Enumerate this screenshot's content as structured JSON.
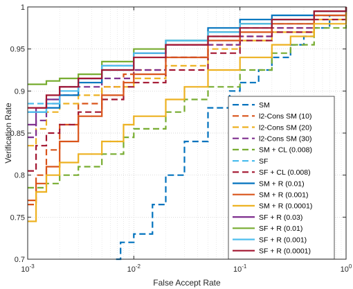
{
  "chart_data": {
    "type": "line",
    "title": "",
    "xlabel": "False Accept Rate",
    "ylabel": "Verification Rate",
    "xscale": "log",
    "xlim": [
      0.001,
      1
    ],
    "ylim": [
      0.7,
      1
    ],
    "grid": true,
    "legend_position": "lower-right",
    "x_ticks": [
      {
        "value": 0.001,
        "base": "10",
        "exp": "-3"
      },
      {
        "value": 0.01,
        "base": "10",
        "exp": "-2"
      },
      {
        "value": 0.1,
        "base": "10",
        "exp": "-1"
      },
      {
        "value": 1,
        "base": "10",
        "exp": "0"
      }
    ],
    "y_ticks": [
      {
        "value": 0.7,
        "label": "0.7"
      },
      {
        "value": 0.75,
        "label": "0.75"
      },
      {
        "value": 0.8,
        "label": "0.8"
      },
      {
        "value": 0.85,
        "label": "0.85"
      },
      {
        "value": 0.9,
        "label": "0.9"
      },
      {
        "value": 0.95,
        "label": "0.95"
      },
      {
        "value": 1,
        "label": "1"
      }
    ],
    "series": [
      {
        "name": "SM",
        "color": "#0072BD",
        "dash": "dashed",
        "points": [
          [
            0.0068,
            0.7
          ],
          [
            0.0075,
            0.72
          ],
          [
            0.01,
            0.73
          ],
          [
            0.015,
            0.765
          ],
          [
            0.02,
            0.8
          ],
          [
            0.03,
            0.84
          ],
          [
            0.05,
            0.88
          ],
          [
            0.08,
            0.9
          ],
          [
            0.1,
            0.91
          ],
          [
            0.15,
            0.925
          ],
          [
            0.2,
            0.94
          ],
          [
            0.3,
            0.955
          ],
          [
            0.4,
            0.965
          ],
          [
            0.5,
            0.975
          ],
          [
            0.7,
            0.99
          ],
          [
            1,
            1.0
          ]
        ]
      },
      {
        "name": "l2-Cons SM (10)",
        "color": "#D95319",
        "dash": "dashed",
        "points": [
          [
            0.001,
            0.765
          ],
          [
            0.0012,
            0.8
          ],
          [
            0.0015,
            0.83
          ],
          [
            0.002,
            0.86
          ],
          [
            0.003,
            0.885
          ],
          [
            0.005,
            0.905
          ],
          [
            0.008,
            0.92
          ],
          [
            0.01,
            0.925
          ],
          [
            0.02,
            0.94
          ],
          [
            0.05,
            0.955
          ],
          [
            0.1,
            0.965
          ],
          [
            0.2,
            0.975
          ],
          [
            0.5,
            0.99
          ],
          [
            1,
            1.0
          ]
        ]
      },
      {
        "name": "l2-Cons SM (20)",
        "color": "#EDB120",
        "dash": "dashed",
        "points": [
          [
            0.001,
            0.835
          ],
          [
            0.0012,
            0.855
          ],
          [
            0.0015,
            0.875
          ],
          [
            0.002,
            0.885
          ],
          [
            0.003,
            0.895
          ],
          [
            0.005,
            0.905
          ],
          [
            0.01,
            0.915
          ],
          [
            0.02,
            0.93
          ],
          [
            0.05,
            0.95
          ],
          [
            0.1,
            0.96
          ],
          [
            0.2,
            0.97
          ],
          [
            0.5,
            0.985
          ],
          [
            1,
            1.0
          ]
        ]
      },
      {
        "name": "l2-Cons SM (30)",
        "color": "#7E2F8E",
        "dash": "dashed",
        "points": [
          [
            0.001,
            0.845
          ],
          [
            0.0012,
            0.865
          ],
          [
            0.0015,
            0.885
          ],
          [
            0.002,
            0.895
          ],
          [
            0.003,
            0.905
          ],
          [
            0.005,
            0.915
          ],
          [
            0.01,
            0.925
          ],
          [
            0.02,
            0.94
          ],
          [
            0.05,
            0.955
          ],
          [
            0.1,
            0.965
          ],
          [
            0.2,
            0.975
          ],
          [
            0.5,
            0.99
          ],
          [
            1,
            1.0
          ]
        ]
      },
      {
        "name": "SM + CL (0.008)",
        "color": "#77AC30",
        "dash": "dashed",
        "points": [
          [
            0.001,
            0.785
          ],
          [
            0.0015,
            0.79
          ],
          [
            0.002,
            0.8
          ],
          [
            0.003,
            0.81
          ],
          [
            0.005,
            0.825
          ],
          [
            0.008,
            0.845
          ],
          [
            0.01,
            0.855
          ],
          [
            0.02,
            0.875
          ],
          [
            0.03,
            0.89
          ],
          [
            0.05,
            0.905
          ],
          [
            0.1,
            0.925
          ],
          [
            0.2,
            0.945
          ],
          [
            0.3,
            0.955
          ],
          [
            0.5,
            0.975
          ],
          [
            1,
            1.0
          ]
        ]
      },
      {
        "name": "SF",
        "color": "#4DBEEE",
        "dash": "dashed",
        "points": [
          [
            0.001,
            0.885
          ],
          [
            0.0015,
            0.89
          ],
          [
            0.002,
            0.905
          ],
          [
            0.003,
            0.915
          ],
          [
            0.005,
            0.93
          ],
          [
            0.01,
            0.945
          ],
          [
            0.02,
            0.955
          ],
          [
            0.05,
            0.965
          ],
          [
            0.1,
            0.975
          ],
          [
            0.2,
            0.98
          ],
          [
            0.5,
            0.99
          ],
          [
            1,
            1.0
          ]
        ]
      },
      {
        "name": "SF + CL (0.008)",
        "color": "#A2142F",
        "dash": "dashed",
        "points": [
          [
            0.001,
            0.805
          ],
          [
            0.0012,
            0.835
          ],
          [
            0.0015,
            0.85
          ],
          [
            0.002,
            0.86
          ],
          [
            0.003,
            0.875
          ],
          [
            0.005,
            0.89
          ],
          [
            0.008,
            0.905
          ],
          [
            0.01,
            0.91
          ],
          [
            0.02,
            0.925
          ],
          [
            0.05,
            0.945
          ],
          [
            0.1,
            0.96
          ],
          [
            0.2,
            0.97
          ],
          [
            0.5,
            0.985
          ],
          [
            1,
            1.0
          ]
        ]
      },
      {
        "name": "SM + R (0.01)",
        "color": "#0072BD",
        "dash": "solid",
        "points": [
          [
            0.001,
            0.875
          ],
          [
            0.0015,
            0.88
          ],
          [
            0.002,
            0.895
          ],
          [
            0.003,
            0.91
          ],
          [
            0.005,
            0.925
          ],
          [
            0.01,
            0.945
          ],
          [
            0.02,
            0.96
          ],
          [
            0.05,
            0.975
          ],
          [
            0.1,
            0.985
          ],
          [
            0.2,
            0.99
          ],
          [
            0.5,
            0.995
          ],
          [
            1,
            1.0
          ]
        ]
      },
      {
        "name": "SM + R (0.001)",
        "color": "#D95319",
        "dash": "solid",
        "points": [
          [
            0.001,
            0.77
          ],
          [
            0.0012,
            0.79
          ],
          [
            0.0015,
            0.81
          ],
          [
            0.002,
            0.84
          ],
          [
            0.003,
            0.87
          ],
          [
            0.005,
            0.895
          ],
          [
            0.008,
            0.91
          ],
          [
            0.01,
            0.92
          ],
          [
            0.02,
            0.94
          ],
          [
            0.05,
            0.96
          ],
          [
            0.1,
            0.97
          ],
          [
            0.2,
            0.98
          ],
          [
            0.5,
            0.99
          ],
          [
            1,
            1.0
          ]
        ]
      },
      {
        "name": "SM + R (0.0001)",
        "color": "#EDB120",
        "dash": "solid",
        "points": [
          [
            0.001,
            0.745
          ],
          [
            0.0012,
            0.78
          ],
          [
            0.0015,
            0.8
          ],
          [
            0.002,
            0.815
          ],
          [
            0.003,
            0.825
          ],
          [
            0.005,
            0.84
          ],
          [
            0.008,
            0.86
          ],
          [
            0.01,
            0.87
          ],
          [
            0.02,
            0.89
          ],
          [
            0.03,
            0.905
          ],
          [
            0.05,
            0.925
          ],
          [
            0.1,
            0.94
          ],
          [
            0.2,
            0.955
          ],
          [
            0.3,
            0.965
          ],
          [
            0.5,
            0.98
          ],
          [
            1,
            1.0
          ]
        ]
      },
      {
        "name": "SF + R (0.03)",
        "color": "#7E2F8E",
        "dash": "solid",
        "points": [
          [
            0.001,
            0.86
          ],
          [
            0.0012,
            0.88
          ],
          [
            0.0015,
            0.89
          ],
          [
            0.002,
            0.905
          ],
          [
            0.003,
            0.915
          ],
          [
            0.005,
            0.93
          ],
          [
            0.01,
            0.945
          ],
          [
            0.02,
            0.955
          ],
          [
            0.05,
            0.97
          ],
          [
            0.1,
            0.98
          ],
          [
            0.2,
            0.985
          ],
          [
            0.5,
            0.995
          ],
          [
            1,
            1.0
          ]
        ]
      },
      {
        "name": "SF + R (0.01)",
        "color": "#77AC30",
        "dash": "solid",
        "points": [
          [
            0.001,
            0.908
          ],
          [
            0.0015,
            0.912
          ],
          [
            0.002,
            0.915
          ],
          [
            0.003,
            0.92
          ],
          [
            0.005,
            0.935
          ],
          [
            0.01,
            0.95
          ],
          [
            0.02,
            0.96
          ],
          [
            0.05,
            0.97
          ],
          [
            0.1,
            0.98
          ],
          [
            0.2,
            0.985
          ],
          [
            0.5,
            0.995
          ],
          [
            1,
            1.0
          ]
        ]
      },
      {
        "name": "SF + R (0.001)",
        "color": "#4DBEEE",
        "dash": "solid",
        "points": [
          [
            0.001,
            0.875
          ],
          [
            0.0015,
            0.885
          ],
          [
            0.002,
            0.9
          ],
          [
            0.003,
            0.915
          ],
          [
            0.005,
            0.93
          ],
          [
            0.01,
            0.945
          ],
          [
            0.02,
            0.96
          ],
          [
            0.05,
            0.97
          ],
          [
            0.1,
            0.98
          ],
          [
            0.2,
            0.985
          ],
          [
            0.5,
            0.995
          ],
          [
            1,
            1.0
          ]
        ]
      },
      {
        "name": "SF + R (0.0001)",
        "color": "#A2142F",
        "dash": "solid",
        "points": [
          [
            0.001,
            0.88
          ],
          [
            0.0015,
            0.895
          ],
          [
            0.002,
            0.905
          ],
          [
            0.003,
            0.915
          ],
          [
            0.005,
            0.925
          ],
          [
            0.01,
            0.94
          ],
          [
            0.02,
            0.955
          ],
          [
            0.05,
            0.965
          ],
          [
            0.1,
            0.975
          ],
          [
            0.2,
            0.985
          ],
          [
            0.5,
            0.995
          ],
          [
            1,
            1.0
          ]
        ]
      }
    ]
  }
}
